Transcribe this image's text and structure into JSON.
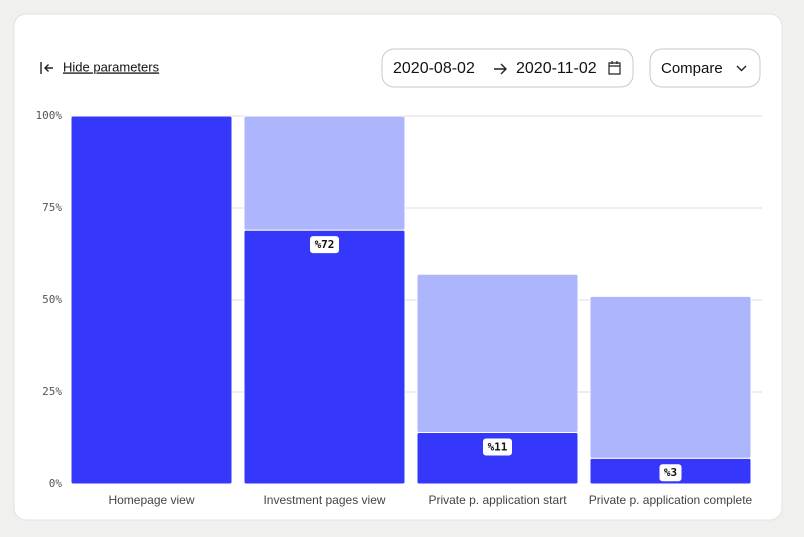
{
  "controls": {
    "hide_parameters": "Hide parameters",
    "date_from": "2020-08-02",
    "date_to": "2020-11-02",
    "compare": "Compare"
  },
  "chart_data": {
    "type": "stacked-bar",
    "categories": [
      "Homepage view",
      "Investment pages view",
      "Private p. application start",
      "Private p. application complete"
    ],
    "series": [
      {
        "color": "#3538fb",
        "values": [
          100,
          69,
          14,
          7
        ]
      },
      {
        "color": "#adb5fd",
        "values": [
          0,
          31,
          43,
          44
        ]
      }
    ],
    "annotations": [
      null,
      "%72",
      "%11",
      "%3"
    ],
    "ylim": [
      0,
      100
    ],
    "yticks": [
      {
        "value": 0,
        "label": "0%"
      },
      {
        "value": 25,
        "label": "25%"
      },
      {
        "value": 50,
        "label": "50%"
      },
      {
        "value": 75,
        "label": "75%"
      },
      {
        "value": 100,
        "label": "100%"
      }
    ],
    "grid": true
  }
}
